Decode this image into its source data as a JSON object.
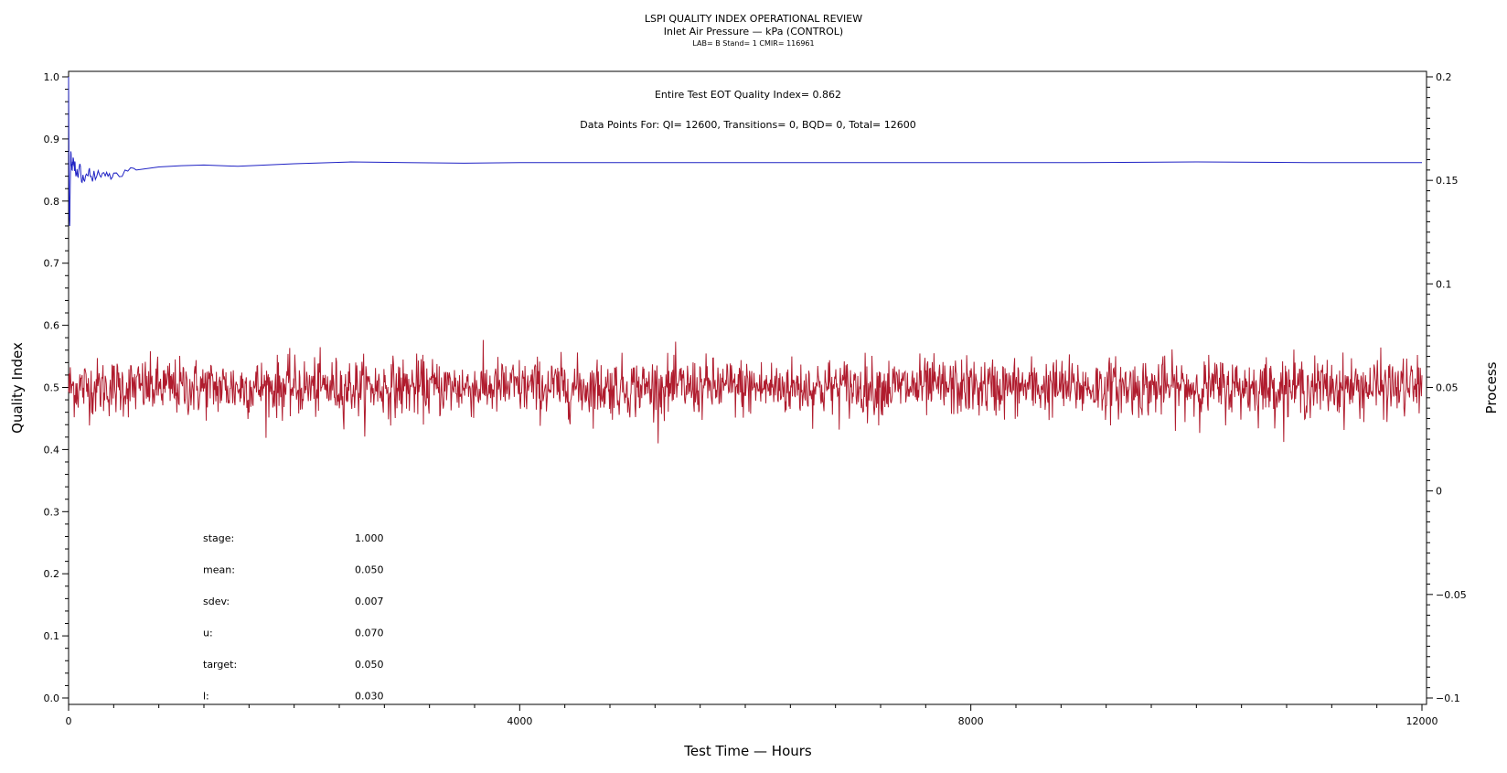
{
  "header": {
    "title": "LSPI QUALITY INDEX OPERATIONAL REVIEW",
    "subtitle": "Inlet Air Pressure — kPa (CONTROL)",
    "meta": "LAB= B Stand= 1 CMIR= 116961"
  },
  "annotations": {
    "qi_line": "Entire Test EOT Quality Index=   0.862",
    "points_line": "Data Points For: QI= 12600, Transitions=     0, BQD=     0, Total= 12600"
  },
  "stats": [
    {
      "label": "stage:",
      "value": "1.000"
    },
    {
      "label": "mean:",
      "value": "0.050"
    },
    {
      "label": "sdev:",
      "value": "0.007"
    },
    {
      "label": "u:",
      "value": "0.070"
    },
    {
      "label": "target:",
      "value": "0.050"
    },
    {
      "label": "l:",
      "value": "0.030"
    }
  ],
  "chart_data": {
    "type": "line",
    "title": "LSPI QUALITY INDEX OPERATIONAL REVIEW",
    "xlabel": "Test Time — Hours",
    "ylabel": "Quality Index",
    "y2label": "Process",
    "xlim": [
      0,
      12000
    ],
    "ylim": [
      0,
      1.0
    ],
    "y2lim": [
      -0.1,
      0.2
    ],
    "xticks": [
      "0",
      "4000",
      "8000",
      "12000"
    ],
    "yticks": [
      "0.0",
      "0.1",
      "0.2",
      "0.3",
      "0.4",
      "0.5",
      "0.6",
      "0.7",
      "0.8",
      "0.9",
      "1.0"
    ],
    "y2ticks": [
      "−0.1",
      "−0.05",
      "0",
      "0.05",
      "0.1",
      "0.15",
      "0.2"
    ],
    "grid": false,
    "series": [
      {
        "axis": "left",
        "color": "#1f22c4",
        "x": [
          0,
          5,
          10,
          15,
          20,
          30,
          40,
          50,
          60,
          80,
          100,
          120,
          150,
          180,
          200,
          250,
          300,
          350,
          400,
          500,
          600,
          800,
          1000,
          1200,
          1500,
          2000,
          2500,
          3000,
          3500,
          4000,
          5000,
          6000,
          7000,
          8000,
          9000,
          10000,
          11000,
          12000
        ],
        "y": [
          1.0,
          0.79,
          0.76,
          0.83,
          0.88,
          0.85,
          0.87,
          0.86,
          0.85,
          0.84,
          0.86,
          0.83,
          0.84,
          0.85,
          0.84,
          0.84,
          0.845,
          0.84,
          0.845,
          0.85,
          0.85,
          0.855,
          0.857,
          0.858,
          0.856,
          0.86,
          0.863,
          0.862,
          0.861,
          0.862,
          0.862,
          0.862,
          0.862,
          0.862,
          0.862,
          0.863,
          0.862,
          0.862
        ]
      },
      {
        "axis": "right",
        "color": "#b01c2e",
        "points": 12600,
        "mean": 0.05,
        "sdev": 0.007,
        "min": 0.023,
        "max": 0.081
      }
    ]
  }
}
